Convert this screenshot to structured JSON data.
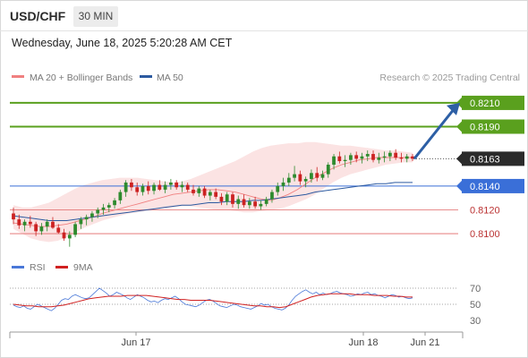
{
  "header": {
    "symbol": "USD/CHF",
    "timeframe": "30 MIN",
    "timestamp": "Wednesday, June 18, 2025 5:20:28 AM CET"
  },
  "legend": {
    "ma20_bb_label": "MA 20 + Bollinger Bands",
    "ma50_label": "MA 50",
    "copyright": "Research © 2025 Trading Central",
    "rsi_label": "RSI",
    "ma9_label": "9MA"
  },
  "colors": {
    "bullish": "#2e8b2e",
    "bearish": "#cc2222",
    "bollinger_fill": "#fbe3e3",
    "ma20": "#f08080",
    "ma50": "#2c5aa0",
    "target_green": "#5aa01e",
    "pivot_blue": "#3a6fd8",
    "support_red": "#e06666",
    "current_price_bg": "#2b2b2b",
    "arrow": "#2d5fa5",
    "rsi_line": "#4a78d8",
    "rsi_ma": "#d02020"
  },
  "chart_data": [
    {
      "type": "candlestick",
      "y_range": [
        0.8085,
        0.8225
      ],
      "x_ticks": [
        "Jun 17",
        "Jun 18",
        "Jun 21"
      ],
      "levels": [
        {
          "price": 0.821,
          "label": "0.8210",
          "kind": "target"
        },
        {
          "price": 0.819,
          "label": "0.8190",
          "kind": "target"
        },
        {
          "price": 0.8163,
          "label": "0.8163",
          "kind": "current"
        },
        {
          "price": 0.814,
          "label": "0.8140",
          "kind": "pivot"
        },
        {
          "price": 0.812,
          "label": "0.8120",
          "kind": "support"
        },
        {
          "price": 0.81,
          "label": "0.8100",
          "kind": "support"
        }
      ],
      "arrow": {
        "from": 0.8163,
        "to": 0.821
      },
      "candles": [
        [
          0.8117,
          0.8122,
          0.8108,
          0.8112
        ],
        [
          0.8112,
          0.8116,
          0.8104,
          0.8107
        ],
        [
          0.8107,
          0.8112,
          0.8102,
          0.811
        ],
        [
          0.811,
          0.8115,
          0.8105,
          0.8108
        ],
        [
          0.8108,
          0.811,
          0.8098,
          0.8102
        ],
        [
          0.8102,
          0.8109,
          0.8099,
          0.8106
        ],
        [
          0.8106,
          0.8112,
          0.8102,
          0.811
        ],
        [
          0.811,
          0.8114,
          0.8104,
          0.8105
        ],
        [
          0.8105,
          0.8108,
          0.81,
          0.8101
        ],
        [
          0.8101,
          0.8104,
          0.8094,
          0.8096
        ],
        [
          0.8096,
          0.8102,
          0.8089,
          0.8099
        ],
        [
          0.8099,
          0.811,
          0.8097,
          0.8108
        ],
        [
          0.8108,
          0.8114,
          0.8104,
          0.8112
        ],
        [
          0.8112,
          0.8116,
          0.8107,
          0.8114
        ],
        [
          0.8114,
          0.8119,
          0.811,
          0.8117
        ],
        [
          0.8117,
          0.8122,
          0.8113,
          0.812
        ],
        [
          0.812,
          0.8125,
          0.8116,
          0.8122
        ],
        [
          0.8122,
          0.8126,
          0.8118,
          0.8124
        ],
        [
          0.8124,
          0.813,
          0.8121,
          0.8128
        ],
        [
          0.8128,
          0.8137,
          0.8125,
          0.8135
        ],
        [
          0.8135,
          0.8145,
          0.8131,
          0.8143
        ],
        [
          0.8143,
          0.8146,
          0.8136,
          0.8139
        ],
        [
          0.8139,
          0.8143,
          0.8132,
          0.8135
        ],
        [
          0.8135,
          0.8142,
          0.8132,
          0.814
        ],
        [
          0.814,
          0.8144,
          0.8133,
          0.8136
        ],
        [
          0.8136,
          0.8143,
          0.8133,
          0.8141
        ],
        [
          0.8141,
          0.8145,
          0.8136,
          0.8137
        ],
        [
          0.8137,
          0.8144,
          0.8134,
          0.8141
        ],
        [
          0.8141,
          0.8146,
          0.8137,
          0.8143
        ],
        [
          0.8143,
          0.8145,
          0.8137,
          0.8139
        ],
        [
          0.8139,
          0.8144,
          0.8135,
          0.8141
        ],
        [
          0.8141,
          0.8143,
          0.8135,
          0.8137
        ],
        [
          0.8137,
          0.8141,
          0.8132,
          0.8134
        ],
        [
          0.8134,
          0.814,
          0.8131,
          0.8138
        ],
        [
          0.8138,
          0.814,
          0.813,
          0.8132
        ],
        [
          0.8132,
          0.8137,
          0.8128,
          0.8135
        ],
        [
          0.8135,
          0.8138,
          0.8129,
          0.8131
        ],
        [
          0.8131,
          0.8134,
          0.8124,
          0.8127
        ],
        [
          0.8127,
          0.8135,
          0.8124,
          0.8133
        ],
        [
          0.8133,
          0.8135,
          0.8122,
          0.8125
        ],
        [
          0.8125,
          0.8132,
          0.8121,
          0.8129
        ],
        [
          0.8129,
          0.8133,
          0.8122,
          0.8124
        ],
        [
          0.8124,
          0.813,
          0.8121,
          0.8127
        ],
        [
          0.8127,
          0.8131,
          0.8121,
          0.8123
        ],
        [
          0.8123,
          0.8128,
          0.812,
          0.8125
        ],
        [
          0.8125,
          0.8131,
          0.8123,
          0.8129
        ],
        [
          0.8129,
          0.8137,
          0.8126,
          0.8135
        ],
        [
          0.8135,
          0.8143,
          0.8132,
          0.814
        ],
        [
          0.814,
          0.8147,
          0.8136,
          0.8143
        ],
        [
          0.8143,
          0.8151,
          0.814,
          0.8147
        ],
        [
          0.8147,
          0.8157,
          0.8144,
          0.815
        ],
        [
          0.815,
          0.8153,
          0.8141,
          0.8144
        ],
        [
          0.8144,
          0.8148,
          0.8139,
          0.8146
        ],
        [
          0.8146,
          0.8154,
          0.8143,
          0.8151
        ],
        [
          0.8151,
          0.8156,
          0.8144,
          0.8147
        ],
        [
          0.8147,
          0.8153,
          0.8145,
          0.815
        ],
        [
          0.815,
          0.816,
          0.8147,
          0.8158
        ],
        [
          0.8158,
          0.8167,
          0.8154,
          0.8165
        ],
        [
          0.8165,
          0.8169,
          0.8159,
          0.8161
        ],
        [
          0.8161,
          0.8166,
          0.8156,
          0.8162
        ],
        [
          0.8162,
          0.8168,
          0.8158,
          0.8166
        ],
        [
          0.8166,
          0.8169,
          0.816,
          0.8163
        ],
        [
          0.8163,
          0.8168,
          0.8159,
          0.8165
        ],
        [
          0.8165,
          0.817,
          0.8161,
          0.8167
        ],
        [
          0.8167,
          0.817,
          0.816,
          0.8162
        ],
        [
          0.8162,
          0.8168,
          0.8159,
          0.8164
        ],
        [
          0.8164,
          0.8169,
          0.816,
          0.8165
        ],
        [
          0.8165,
          0.817,
          0.8161,
          0.8168
        ],
        [
          0.8168,
          0.8171,
          0.8162,
          0.8164
        ],
        [
          0.8164,
          0.8168,
          0.816,
          0.8163
        ],
        [
          0.8163,
          0.8167,
          0.816,
          0.8165
        ],
        [
          0.8165,
          0.8167,
          0.8161,
          0.8163
        ]
      ],
      "ma20": [
        0.8109,
        0.8108,
        0.8107,
        0.8106,
        0.8106,
        0.8107,
        0.8108,
        0.811,
        0.8112,
        0.8114,
        0.8117,
        0.8119,
        0.8121,
        0.8123,
        0.8125,
        0.8127,
        0.8129,
        0.8131,
        0.8133,
        0.8134,
        0.8135,
        0.8136,
        0.8137,
        0.8137,
        0.8136,
        0.8135,
        0.8133,
        0.8131,
        0.8129,
        0.8128,
        0.813,
        0.8133,
        0.8137,
        0.8142,
        0.8147,
        0.8151,
        0.8155,
        0.8158,
        0.816,
        0.8162,
        0.8163,
        0.8164,
        0.8164,
        0.8164,
        0.8164,
        0.8164
      ],
      "ma50": [
        0.8115,
        0.8114,
        0.8113,
        0.8112,
        0.8111,
        0.8111,
        0.8111,
        0.8112,
        0.8113,
        0.8114,
        0.8115,
        0.8116,
        0.8117,
        0.8118,
        0.8119,
        0.812,
        0.8121,
        0.8122,
        0.8123,
        0.8124,
        0.8124,
        0.8125,
        0.8126,
        0.8126,
        0.8127,
        0.8127,
        0.8127,
        0.8128,
        0.8128,
        0.8129,
        0.813,
        0.8131,
        0.8132,
        0.8133,
        0.8135,
        0.8136,
        0.8137,
        0.8138,
        0.8139,
        0.814,
        0.8141,
        0.8142,
        0.8142,
        0.8143,
        0.8143,
        0.8143
      ],
      "bb_upper": [
        0.8124,
        0.8122,
        0.8122,
        0.8124,
        0.8126,
        0.813,
        0.8134,
        0.8138,
        0.8141,
        0.8143,
        0.8145,
        0.8146,
        0.8147,
        0.8147,
        0.8147,
        0.8146,
        0.8145,
        0.8144,
        0.8143,
        0.8144,
        0.8146,
        0.8149,
        0.8152,
        0.8155,
        0.8158,
        0.8161,
        0.8165,
        0.8169,
        0.8172,
        0.8174,
        0.8175,
        0.8176,
        0.8176,
        0.8177,
        0.8177,
        0.8176,
        0.8175,
        0.8174,
        0.8174,
        0.8173,
        0.8172,
        0.8171,
        0.817,
        0.817,
        0.8169,
        0.8168
      ],
      "bb_lower": [
        0.8104,
        0.81,
        0.8096,
        0.8094,
        0.8093,
        0.8094,
        0.8097,
        0.8101,
        0.8105,
        0.8108,
        0.8111,
        0.8113,
        0.8115,
        0.8117,
        0.8118,
        0.8119,
        0.812,
        0.8121,
        0.8122,
        0.8123,
        0.8123,
        0.8122,
        0.8121,
        0.812,
        0.812,
        0.8119,
        0.8118,
        0.8118,
        0.8119,
        0.812,
        0.8121,
        0.8123,
        0.8126,
        0.8129,
        0.8133,
        0.8138,
        0.8143,
        0.8147,
        0.815,
        0.8152,
        0.8154,
        0.8156,
        0.8158,
        0.8159,
        0.816,
        0.816
      ]
    },
    {
      "type": "line",
      "y_ticks": [
        70,
        50,
        30
      ],
      "rsi": [
        49,
        47,
        46,
        48,
        45,
        44,
        47,
        50,
        48,
        46,
        44,
        42,
        45,
        50,
        55,
        57,
        56,
        60,
        62,
        60,
        58,
        57,
        58,
        62,
        66,
        70,
        67,
        64,
        60,
        62,
        65,
        63,
        61,
        58,
        56,
        59,
        62,
        60,
        58,
        55,
        53,
        54,
        52,
        55,
        57,
        56,
        58,
        60,
        57,
        53,
        50,
        49,
        48,
        47,
        49,
        52,
        55,
        56,
        54,
        51,
        48,
        47,
        46,
        48,
        50,
        49,
        47,
        46,
        45,
        44,
        46,
        48,
        51,
        49,
        50,
        47,
        45,
        44,
        43,
        45,
        49,
        55,
        60,
        63,
        66,
        68,
        65,
        63,
        65,
        62,
        64,
        62,
        63,
        65,
        66,
        64,
        63,
        62,
        60,
        61,
        63,
        62,
        64,
        65,
        62,
        63,
        61,
        60,
        58,
        60,
        62,
        61,
        59,
        60,
        58,
        57,
        58
      ],
      "rsi_ma9": [
        50,
        49,
        48,
        48,
        47,
        47,
        47,
        48,
        49,
        51,
        53,
        55,
        57,
        58,
        59,
        60,
        60,
        60,
        61,
        61,
        61,
        61,
        60,
        59,
        58,
        57,
        56,
        56,
        55,
        55,
        55,
        55,
        54,
        53,
        52,
        51,
        50,
        49,
        48,
        48,
        47,
        47,
        46,
        47,
        50,
        53,
        56,
        59,
        61,
        62,
        63,
        63,
        63,
        63,
        62,
        62,
        62,
        61,
        61,
        61,
        60,
        60,
        59,
        59
      ]
    }
  ]
}
